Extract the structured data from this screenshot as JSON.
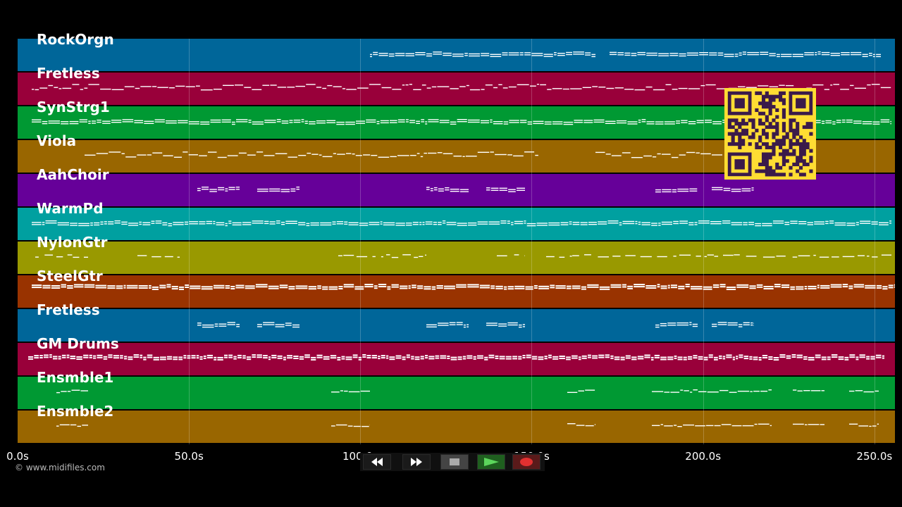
{
  "tracks": [
    {
      "name": "RockOrgn",
      "color": "#006699",
      "density": "sparse-chords"
    },
    {
      "name": "Fretless",
      "color": "#99003a",
      "density": "line"
    },
    {
      "name": "SynStrg1",
      "color": "#009933",
      "density": "chords"
    },
    {
      "name": "Viola",
      "color": "#996600",
      "density": "phrases"
    },
    {
      "name": "AahChoir",
      "color": "#660099",
      "density": "clusters"
    },
    {
      "name": "WarmPd",
      "color": "#00a0a0",
      "density": "chords"
    },
    {
      "name": "NylonGtr",
      "color": "#999900",
      "density": "scattered"
    },
    {
      "name": "SteelGtr",
      "color": "#993300",
      "density": "dense"
    },
    {
      "name": "Fretless",
      "color": "#006699",
      "density": "clusters"
    },
    {
      "name": "GM Drums",
      "color": "#99003a",
      "density": "drums"
    },
    {
      "name": "Ensmble1",
      "color": "#009933",
      "density": "short"
    },
    {
      "name": "Ensmble2",
      "color": "#996600",
      "density": "short"
    }
  ],
  "time_axis": {
    "ticks": [
      "0.0s",
      "50.0s",
      "100.0s",
      "150.0s",
      "200.0s",
      "250.0s"
    ],
    "tick_seconds": [
      0,
      50,
      100,
      150,
      200,
      250
    ],
    "total_seconds": 256
  },
  "copyright": "© www.midifiles.com",
  "transport": {
    "rewind_icon": "rewind-icon",
    "fast_forward_icon": "fast-forward-icon",
    "stop_icon": "stop-icon",
    "play_icon": "play-icon",
    "record_icon": "record-icon"
  },
  "qr_code": {
    "color": "#ffdd33",
    "dark": "#3a1a4a"
  },
  "colors": {
    "background": "#000000",
    "note": "#ffffff"
  }
}
